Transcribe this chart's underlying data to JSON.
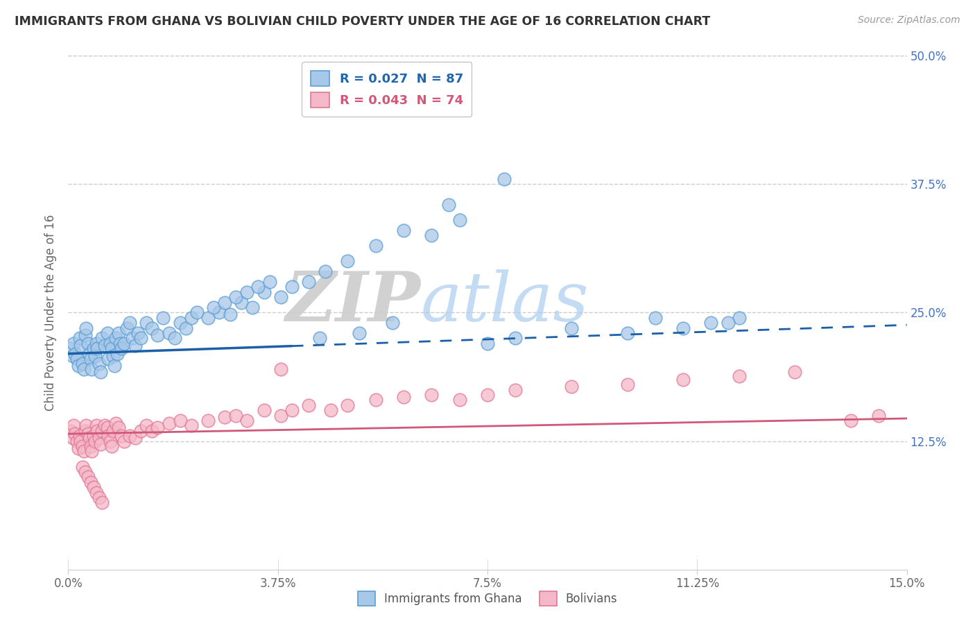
{
  "title": "IMMIGRANTS FROM GHANA VS BOLIVIAN CHILD POVERTY UNDER THE AGE OF 16 CORRELATION CHART",
  "source_text": "Source: ZipAtlas.com",
  "ylabel": "Child Poverty Under the Age of 16",
  "xlim": [
    0.0,
    15.0
  ],
  "ylim": [
    0.0,
    50.0
  ],
  "xtick_labels": [
    "0.0%",
    "3.75%",
    "7.5%",
    "11.25%",
    "15.0%"
  ],
  "xtick_values": [
    0.0,
    3.75,
    7.5,
    11.25,
    15.0
  ],
  "ytick_labels": [
    "12.5%",
    "25.0%",
    "37.5%",
    "50.0%"
  ],
  "ytick_values": [
    12.5,
    25.0,
    37.5,
    50.0
  ],
  "blue_fill": "#a8c8e8",
  "blue_edge": "#5a9fd4",
  "pink_fill": "#f5b8c8",
  "pink_edge": "#e07898",
  "blue_line_color": "#1a5fa8",
  "pink_line_color": "#d05878",
  "legend_blue_label": "R = 0.027  N = 87",
  "legend_pink_label": "R = 0.043  N = 74",
  "legend_blue_text_color": "#2166ac",
  "legend_pink_text_color": "#d05878",
  "watermark_zip": "ZIP",
  "watermark_atlas": "atlas",
  "watermark_color_zip": "#cccccc",
  "watermark_color_atlas": "#88bbdd",
  "background_color": "#ffffff",
  "blue_intercept": 21.0,
  "blue_slope_total": 2.8,
  "pink_intercept": 13.2,
  "pink_slope_total": 1.5,
  "solid_end_x": 4.0,
  "blue_x": [
    0.05,
    0.08,
    0.1,
    0.12,
    0.15,
    0.18,
    0.2,
    0.22,
    0.25,
    0.28,
    0.3,
    0.32,
    0.35,
    0.38,
    0.4,
    0.42,
    0.45,
    0.48,
    0.5,
    0.52,
    0.55,
    0.58,
    0.6,
    0.65,
    0.7,
    0.72,
    0.75,
    0.78,
    0.8,
    0.82,
    0.85,
    0.88,
    0.9,
    0.92,
    0.95,
    1.0,
    1.05,
    1.1,
    1.15,
    1.2,
    1.25,
    1.3,
    1.4,
    1.5,
    1.6,
    1.7,
    1.8,
    1.9,
    2.0,
    2.1,
    2.2,
    2.3,
    2.5,
    2.7,
    2.9,
    3.1,
    3.3,
    3.5,
    3.8,
    4.0,
    4.3,
    4.6,
    5.0,
    5.5,
    6.0,
    6.5,
    7.0,
    7.5,
    8.0,
    9.0,
    10.0,
    11.0,
    11.5,
    12.0,
    2.6,
    2.8,
    3.0,
    3.2,
    3.4,
    3.6,
    4.5,
    5.2,
    5.8,
    6.8,
    7.8,
    10.5,
    11.8
  ],
  "blue_y": [
    21.5,
    20.8,
    22.0,
    21.0,
    20.5,
    19.8,
    22.5,
    21.8,
    20.0,
    19.5,
    22.8,
    23.5,
    22.0,
    21.0,
    20.5,
    19.5,
    21.5,
    20.8,
    22.0,
    21.5,
    20.0,
    19.2,
    22.5,
    21.8,
    23.0,
    20.5,
    22.0,
    21.5,
    20.8,
    19.8,
    22.5,
    21.0,
    23.0,
    22.0,
    21.5,
    22.0,
    23.5,
    24.0,
    22.5,
    21.8,
    23.0,
    22.5,
    24.0,
    23.5,
    22.8,
    24.5,
    23.0,
    22.5,
    24.0,
    23.5,
    24.5,
    25.0,
    24.5,
    25.0,
    24.8,
    26.0,
    25.5,
    27.0,
    26.5,
    27.5,
    28.0,
    29.0,
    30.0,
    31.5,
    33.0,
    32.5,
    34.0,
    22.0,
    22.5,
    23.5,
    23.0,
    23.5,
    24.0,
    24.5,
    25.5,
    26.0,
    26.5,
    27.0,
    27.5,
    28.0,
    22.5,
    23.0,
    24.0,
    35.5,
    38.0,
    24.5,
    24.0
  ],
  "pink_x": [
    0.05,
    0.08,
    0.1,
    0.12,
    0.15,
    0.18,
    0.2,
    0.22,
    0.25,
    0.28,
    0.3,
    0.32,
    0.35,
    0.38,
    0.4,
    0.42,
    0.45,
    0.48,
    0.5,
    0.52,
    0.55,
    0.58,
    0.6,
    0.65,
    0.7,
    0.72,
    0.75,
    0.78,
    0.8,
    0.85,
    0.9,
    0.95,
    1.0,
    1.1,
    1.2,
    1.3,
    1.4,
    1.5,
    1.6,
    1.8,
    2.0,
    2.2,
    2.5,
    2.8,
    3.0,
    3.2,
    3.5,
    3.8,
    4.0,
    4.3,
    4.7,
    5.0,
    5.5,
    6.0,
    6.5,
    7.0,
    7.5,
    8.0,
    9.0,
    10.0,
    11.0,
    12.0,
    13.0,
    14.0,
    14.5,
    0.25,
    0.3,
    0.35,
    0.4,
    0.45,
    0.5,
    0.55,
    0.6,
    3.8
  ],
  "pink_y": [
    13.5,
    12.8,
    14.0,
    13.2,
    12.5,
    11.8,
    13.0,
    12.5,
    12.0,
    11.5,
    13.5,
    14.0,
    13.2,
    12.8,
    12.0,
    11.5,
    13.0,
    12.5,
    14.0,
    13.5,
    12.8,
    12.2,
    13.5,
    14.0,
    13.8,
    13.0,
    12.5,
    12.0,
    13.5,
    14.2,
    13.8,
    13.0,
    12.5,
    13.0,
    12.8,
    13.5,
    14.0,
    13.5,
    13.8,
    14.2,
    14.5,
    14.0,
    14.5,
    14.8,
    15.0,
    14.5,
    15.5,
    15.0,
    15.5,
    16.0,
    15.5,
    16.0,
    16.5,
    16.8,
    17.0,
    16.5,
    17.0,
    17.5,
    17.8,
    18.0,
    18.5,
    18.8,
    19.2,
    14.5,
    15.0,
    10.0,
    9.5,
    9.0,
    8.5,
    8.0,
    7.5,
    7.0,
    6.5,
    19.5
  ]
}
